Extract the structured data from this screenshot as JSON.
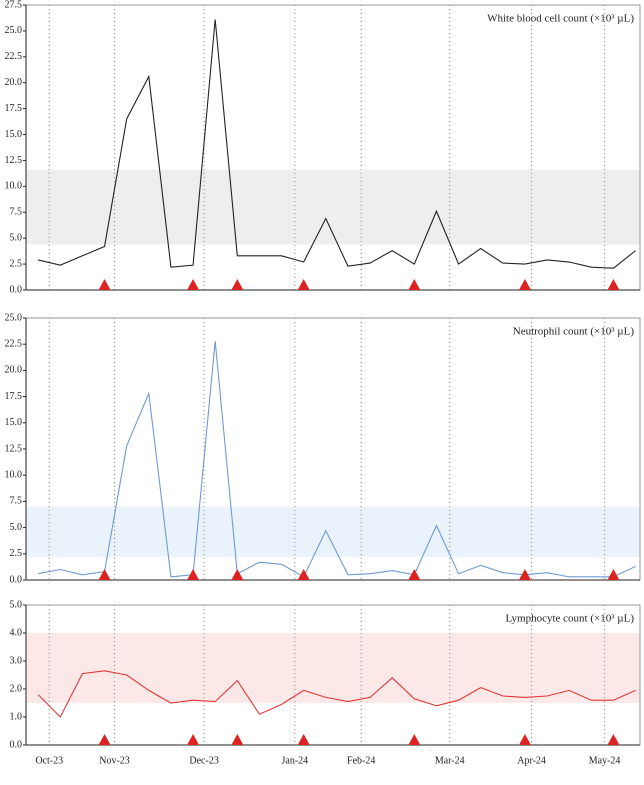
{
  "chart_data": [
    {
      "type": "line",
      "title": "White blood cell count (×10³ µL)",
      "x": [
        0,
        1,
        2,
        3,
        4,
        5,
        6,
        7,
        8,
        9,
        10,
        11,
        12,
        13,
        14,
        15,
        16,
        17,
        18,
        19,
        20,
        21,
        22,
        23,
        24,
        25,
        26,
        27
      ],
      "series": [
        {
          "name": "White blood cell count",
          "color": "#222222",
          "values": [
            2.9,
            2.4,
            3.3,
            4.2,
            16.5,
            20.6,
            2.2,
            2.4,
            26.1,
            3.3,
            3.3,
            3.3,
            2.7,
            6.9,
            2.3,
            2.6,
            3.8,
            2.5,
            7.6,
            2.5,
            4.0,
            2.6,
            2.5,
            2.9,
            2.7,
            2.2,
            2.1,
            3.8
          ]
        }
      ],
      "band": [
        4.4,
        11.6
      ],
      "band_color": "#eeeeee",
      "markers": [
        3,
        7,
        9,
        12,
        17,
        22,
        26
      ],
      "marker_color": "#dd2222",
      "xlim": [
        -0.55,
        27.2
      ],
      "xticks": [
        0.5,
        3.45,
        7.5,
        11.6,
        14.6,
        18.6,
        22.3,
        25.6
      ],
      "ylim": [
        0,
        27.5
      ],
      "yticks": [
        {
          "value": 0,
          "label": "0.0"
        },
        2.5,
        {
          "value": 5,
          "label": "5.0"
        },
        7.5,
        {
          "value": 10,
          "label": "10.0"
        },
        12.5,
        {
          "value": 15,
          "label": "15.0"
        },
        17.5,
        {
          "value": 20,
          "label": "20.0"
        },
        22.5,
        {
          "value": 25,
          "label": "25.0"
        },
        27.5
      ]
    },
    {
      "type": "line",
      "title": "Neutrophil count (×10³ µL)",
      "x": [
        0,
        1,
        2,
        3,
        4,
        5,
        6,
        7,
        8,
        9,
        10,
        11,
        12,
        13,
        14,
        15,
        16,
        17,
        18,
        19,
        20,
        21,
        22,
        23,
        24,
        25,
        26,
        27
      ],
      "series": [
        {
          "name": "Neutrophil count",
          "color": "#6f9bd1",
          "values": [
            0.6,
            1.0,
            0.5,
            0.8,
            12.8,
            17.8,
            0.3,
            0.5,
            22.8,
            0.6,
            1.7,
            1.5,
            0.3,
            4.7,
            0.5,
            0.6,
            0.9,
            0.5,
            5.2,
            0.6,
            1.4,
            0.7,
            0.5,
            0.7,
            0.3,
            0.3,
            0.3,
            1.3
          ]
        }
      ],
      "band": [
        2.2,
        7.0
      ],
      "band_color": "#eaf3fb",
      "markers": [
        3,
        7,
        9,
        12,
        17,
        22,
        26
      ],
      "marker_color": "#dd2222",
      "xlim": [
        -0.55,
        27.2
      ],
      "xticks": [
        0.5,
        3.45,
        7.5,
        11.6,
        14.6,
        18.6,
        22.3,
        25.6
      ],
      "ylim": [
        0,
        25
      ],
      "yticks": [
        {
          "value": 0,
          "label": "0.0"
        },
        2.5,
        {
          "value": 5,
          "label": "5.0"
        },
        7.5,
        {
          "value": 10,
          "label": "10.0"
        },
        12.5,
        {
          "value": 15,
          "label": "15.0"
        },
        17.5,
        {
          "value": 20,
          "label": "20.0"
        },
        22.5,
        {
          "value": 25,
          "label": "25.0"
        }
      ]
    },
    {
      "type": "line",
      "title": "Lymphocyte count (×10³ µL)",
      "x": [
        0,
        1,
        2,
        3,
        4,
        5,
        6,
        7,
        8,
        9,
        10,
        11,
        12,
        13,
        14,
        15,
        16,
        17,
        18,
        19,
        20,
        21,
        22,
        23,
        24,
        25,
        26,
        27
      ],
      "series": [
        {
          "name": "Lymphocyte count",
          "color": "#e0383a",
          "values": [
            1.8,
            1.0,
            2.55,
            2.65,
            2.5,
            1.95,
            1.5,
            1.6,
            1.55,
            2.3,
            1.1,
            1.45,
            1.95,
            1.7,
            1.55,
            1.7,
            2.4,
            1.65,
            1.4,
            1.6,
            2.05,
            1.75,
            1.7,
            1.75,
            1.95,
            1.6,
            1.6,
            1.95
          ]
        }
      ],
      "band": [
        1.5,
        4.0
      ],
      "band_color": "#fde8e8",
      "markers": [
        3,
        7,
        9,
        12,
        17,
        22,
        26
      ],
      "marker_color": "#dd2222",
      "xlim": [
        -0.55,
        27.2
      ],
      "xticks": [
        {
          "value": 0.5,
          "label": "Oct-23"
        },
        {
          "value": 3.45,
          "label": "Nov-23"
        },
        {
          "value": 7.5,
          "label": "Dec-23"
        },
        {
          "value": 11.6,
          "label": "Jan-24"
        },
        {
          "value": 14.6,
          "label": "Feb-24"
        },
        {
          "value": 18.6,
          "label": "Mar-24"
        },
        {
          "value": 22.3,
          "label": "Apr-24"
        },
        {
          "value": 25.6,
          "label": "May-24"
        }
      ],
      "ylim": [
        0,
        5
      ],
      "yticks": [
        {
          "value": 0,
          "label": "0.0"
        },
        {
          "value": 1,
          "label": "1.0"
        },
        {
          "value": 2,
          "label": "2.0"
        },
        {
          "value": 3,
          "label": "3.0"
        },
        {
          "value": 4,
          "label": "4.0"
        },
        {
          "value": 5,
          "label": "5.0"
        }
      ]
    }
  ]
}
